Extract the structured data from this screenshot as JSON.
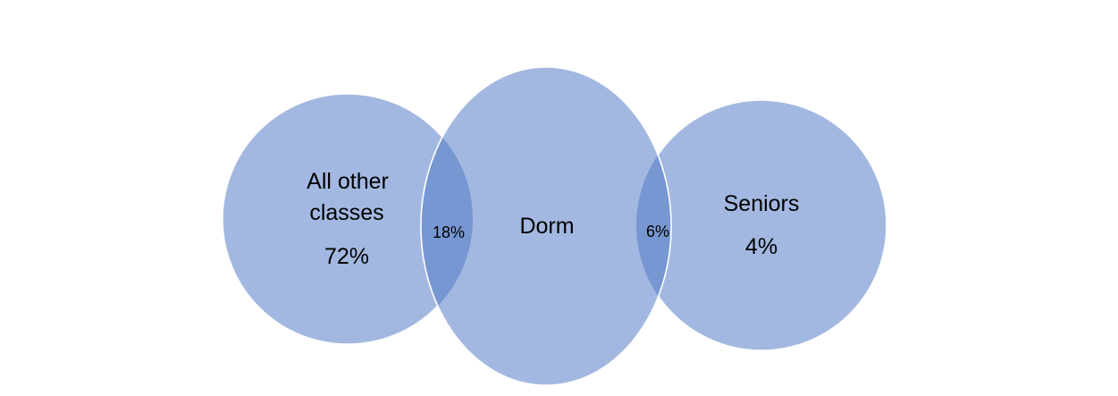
{
  "diagram": {
    "type": "venn",
    "colors": {
      "circle_fill": "#A3B8E0",
      "overlap_fill": "#7697D2",
      "circle_stroke": "#FFFFFF"
    },
    "sets": [
      {
        "id": "all-other-classes",
        "label_line1": "All other",
        "label_line2": "classes",
        "value": "72%"
      },
      {
        "id": "dorm",
        "label": "Dorm"
      },
      {
        "id": "seniors",
        "label": "Seniors",
        "value": "4%"
      }
    ],
    "overlaps": [
      {
        "id": "other-dorm",
        "between": [
          "all-other-classes",
          "dorm"
        ],
        "value": "18%"
      },
      {
        "id": "dorm-seniors",
        "between": [
          "dorm",
          "seniors"
        ],
        "value": "6%"
      }
    ]
  }
}
